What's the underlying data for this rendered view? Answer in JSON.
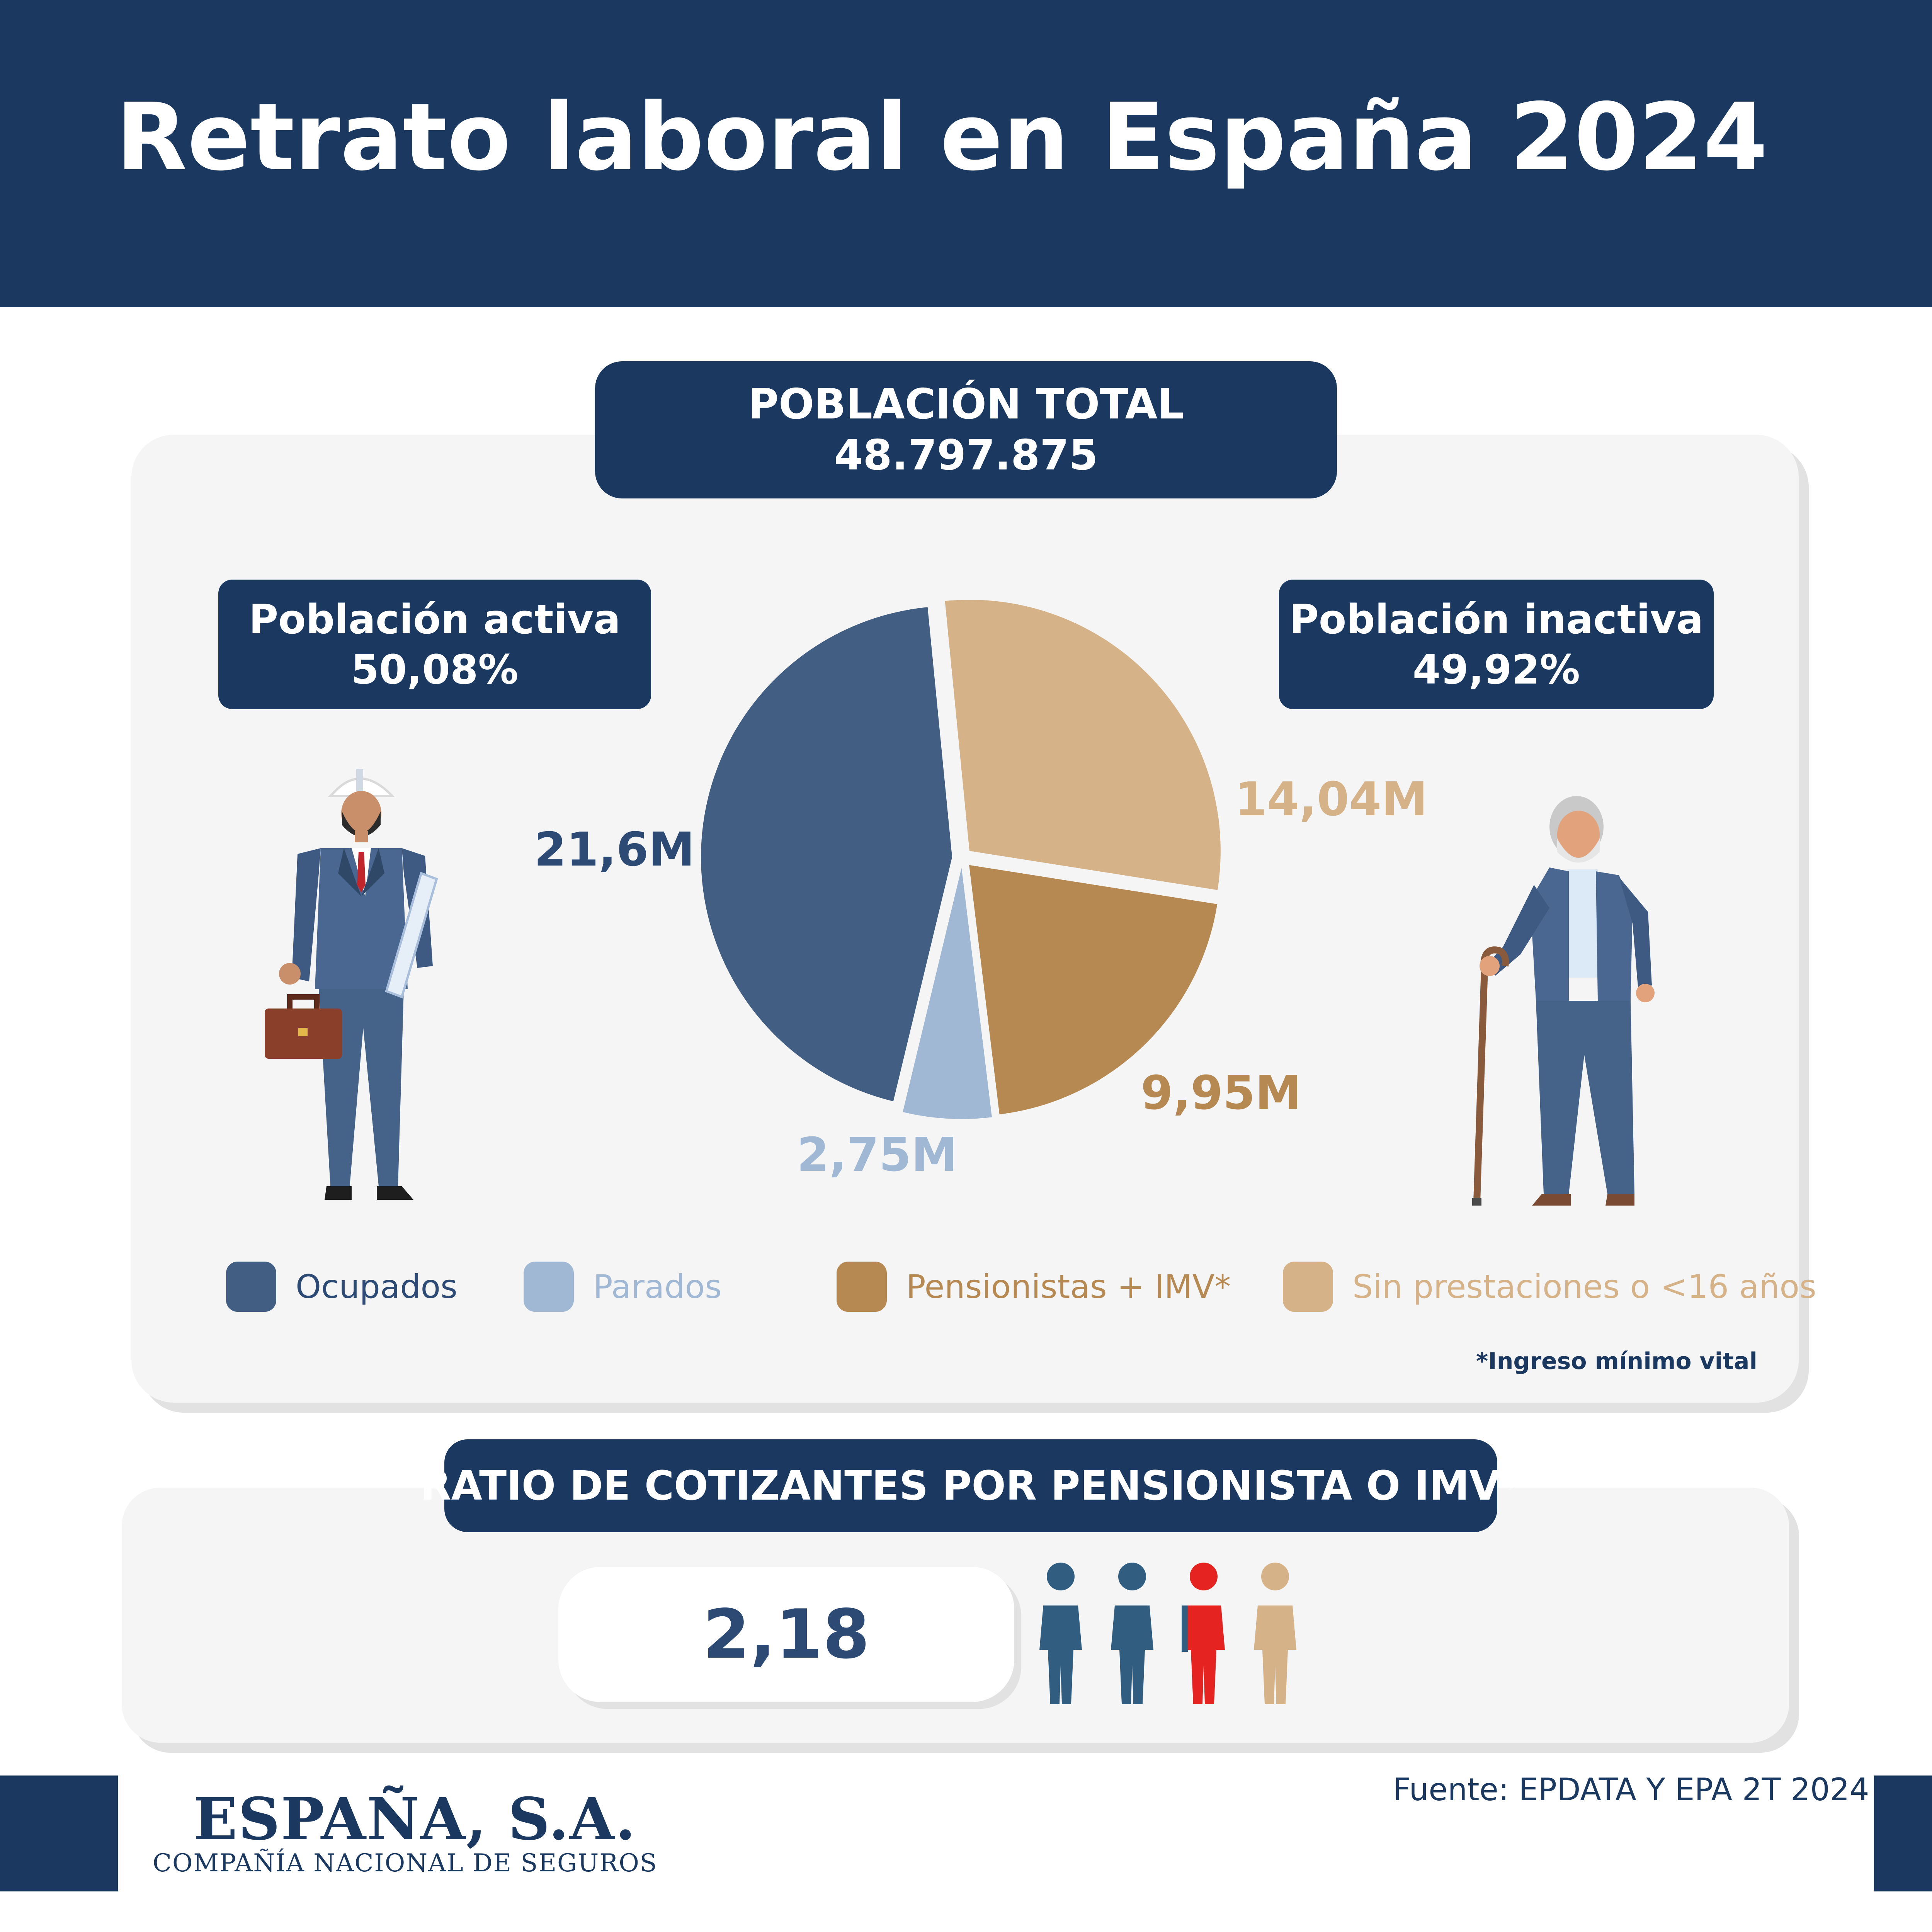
{
  "title": "Retrato laboral en España 2024",
  "total": {
    "label": "POBLACIÓN TOTAL",
    "value": "48.797.875"
  },
  "active": {
    "label": "Población activa",
    "value": "50,08%"
  },
  "inactive": {
    "label": "Población inactiva",
    "value": "49,92%"
  },
  "chart_data": {
    "type": "pie",
    "categories": [
      "Ocupados",
      "Parados",
      "Pensionistas + IMV*",
      "Sin prestaciones o <16 años"
    ],
    "values": [
      21.6,
      2.75,
      9.95,
      14.04
    ],
    "value_labels": [
      "21,6M",
      "2,75M",
      "9,95M",
      "14,04M"
    ],
    "colors": [
      "#425e82",
      "#a1b8d5",
      "#b58951",
      "#d5b287"
    ],
    "start_angle_deg": -5.6,
    "legend": "bottom",
    "footnote": "*Ingreso mínimo vital"
  },
  "ratio": {
    "label": "RATIO DE COTIZANTES POR PENSIONISTA O IMV*",
    "value": "2,18",
    "value_number": 2.18,
    "colors": {
      "contributor": "#315d80",
      "highlight": "#e52321",
      "pensioner": "#d5b287"
    }
  },
  "source": "Fuente: EPDATA Y EPA 2T 2024",
  "brand": {
    "name": "ESPAÑA, S.A.",
    "subtitle": "COMPAÑÍA NACIONAL DE SEGUROS"
  },
  "icons": [
    "worker-icon",
    "elderly-man-icon",
    "person-icon"
  ]
}
